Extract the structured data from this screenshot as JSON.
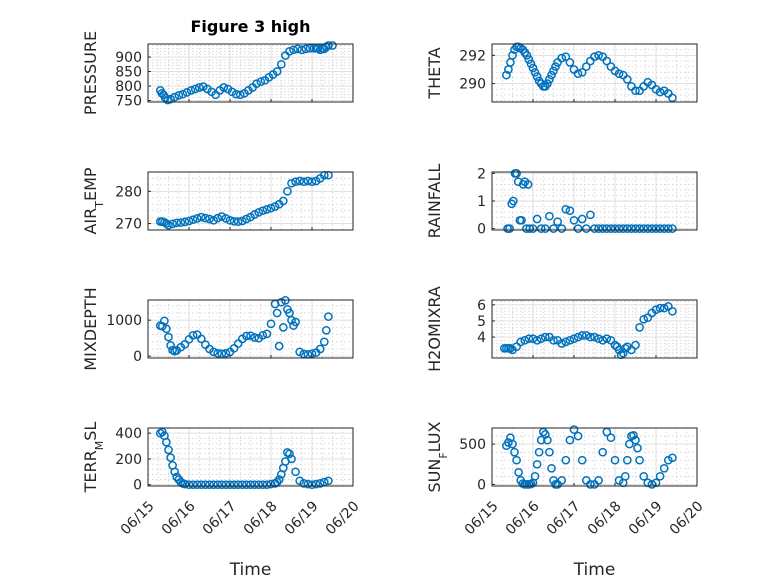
{
  "figure": {
    "title": "Figure 3 high"
  },
  "chart_data": [
    {
      "type": "scatter",
      "title": "Figure 3 high",
      "ylabel": "PRESSURE",
      "ylim": [
        745,
        945
      ],
      "yticks": [
        750,
        800,
        850,
        900
      ],
      "x": [
        0.3,
        0.34,
        0.38,
        0.42,
        0.48,
        0.55,
        0.65,
        0.75,
        0.85,
        0.95,
        1.05,
        1.15,
        1.25,
        1.35,
        1.45,
        1.55,
        1.65,
        1.75,
        1.85,
        1.95,
        2.05,
        2.15,
        2.25,
        2.35,
        2.45,
        2.55,
        2.65,
        2.75,
        2.85,
        2.95,
        3.05,
        3.15,
        3.25,
        3.35,
        3.45,
        3.55,
        3.65,
        3.75,
        3.85,
        3.95,
        4.05,
        4.1,
        4.15,
        4.2,
        4.25,
        4.3,
        4.35,
        4.4,
        4.5
      ],
      "y": [
        785,
        775,
        770,
        760,
        752,
        755,
        762,
        768,
        772,
        778,
        785,
        790,
        795,
        798,
        790,
        780,
        770,
        785,
        795,
        790,
        780,
        772,
        770,
        775,
        785,
        795,
        808,
        815,
        820,
        830,
        840,
        850,
        875,
        905,
        920,
        925,
        928,
        925,
        928,
        930,
        930,
        930,
        930,
        925,
        930,
        928,
        935,
        940,
        940
      ],
      "color": "#0072BD"
    },
    {
      "type": "scatter",
      "ylabel": "THETA",
      "ylim": [
        288.7,
        292.8
      ],
      "yticks": [
        290,
        292
      ],
      "x": [
        0.35,
        0.4,
        0.45,
        0.5,
        0.55,
        0.6,
        0.65,
        0.7,
        0.75,
        0.8,
        0.85,
        0.9,
        0.95,
        1.0,
        1.05,
        1.1,
        1.15,
        1.2,
        1.25,
        1.3,
        1.35,
        1.4,
        1.45,
        1.5,
        1.55,
        1.6,
        1.7,
        1.8,
        1.9,
        2.0,
        2.1,
        2.2,
        2.3,
        2.4,
        2.5,
        2.6,
        2.7,
        2.8,
        2.9,
        3.0,
        3.1,
        3.2,
        3.3,
        3.4,
        3.5,
        3.6,
        3.7,
        3.8,
        3.9,
        4.0,
        4.1,
        4.2,
        4.3,
        4.4
      ],
      "y": [
        290.6,
        291.0,
        291.5,
        292.0,
        292.4,
        292.6,
        292.6,
        292.5,
        292.4,
        292.2,
        292.0,
        291.7,
        291.4,
        291.1,
        290.8,
        290.5,
        290.2,
        290.0,
        289.8,
        289.8,
        290.0,
        290.3,
        290.6,
        290.9,
        291.2,
        291.5,
        291.8,
        291.9,
        291.5,
        291.0,
        290.7,
        290.8,
        291.2,
        291.6,
        291.9,
        292.0,
        291.9,
        291.6,
        291.2,
        290.9,
        290.7,
        290.6,
        290.3,
        289.8,
        289.5,
        289.5,
        289.8,
        290.1,
        289.9,
        289.6,
        289.4,
        289.5,
        289.3,
        289.0
      ],
      "color": "#0072BD"
    },
    {
      "type": "scatter",
      "ylabel": "AIR_TEMP",
      "ylim": [
        268,
        286
      ],
      "yticks": [
        270,
        280
      ],
      "x": [
        0.3,
        0.35,
        0.4,
        0.45,
        0.5,
        0.6,
        0.7,
        0.8,
        0.9,
        1.0,
        1.1,
        1.2,
        1.3,
        1.4,
        1.5,
        1.6,
        1.7,
        1.8,
        1.9,
        2.0,
        2.1,
        2.2,
        2.3,
        2.4,
        2.5,
        2.6,
        2.7,
        2.8,
        2.9,
        3.0,
        3.1,
        3.2,
        3.3,
        3.4,
        3.5,
        3.6,
        3.7,
        3.8,
        3.9,
        4.0,
        4.1,
        4.2,
        4.3,
        4.4
      ],
      "y": [
        270.6,
        270.6,
        270.4,
        270.0,
        269.5,
        269.9,
        270.2,
        270.3,
        270.5,
        270.8,
        271.2,
        271.6,
        272.0,
        271.7,
        271.4,
        271.0,
        271.7,
        272.2,
        271.6,
        271.0,
        270.7,
        270.6,
        270.8,
        271.4,
        272.0,
        272.8,
        273.5,
        274.0,
        274.4,
        274.8,
        275.3,
        276.0,
        277.0,
        280.0,
        282.5,
        283.0,
        283.2,
        283.0,
        283.2,
        283.0,
        283.2,
        284.0,
        285.0,
        285.0
      ],
      "color": "#0072BD"
    },
    {
      "type": "scatter",
      "ylabel": "RAINFALL",
      "ylim": [
        -0.05,
        2.05
      ],
      "yticks": [
        0,
        1,
        2
      ],
      "x": [
        0.38,
        0.43,
        0.48,
        0.52,
        0.56,
        0.6,
        0.64,
        0.68,
        0.72,
        0.76,
        0.8,
        0.84,
        0.88,
        0.92,
        1.0,
        1.1,
        1.2,
        1.3,
        1.4,
        1.5,
        1.6,
        1.7,
        1.8,
        1.9,
        2.0,
        2.1,
        2.2,
        2.3,
        2.4,
        2.5,
        2.6,
        2.7,
        2.8,
        2.9,
        3.0,
        3.1,
        3.2,
        3.3,
        3.4,
        3.5,
        3.6,
        3.7,
        3.8,
        3.9,
        4.0,
        4.1,
        4.2,
        4.3,
        4.4
      ],
      "y": [
        0,
        0,
        0.9,
        1.0,
        2.0,
        2.0,
        1.7,
        0.3,
        0.3,
        1.6,
        1.7,
        0,
        1.6,
        0,
        0,
        0.35,
        0,
        0,
        0.45,
        0,
        0.25,
        0,
        0.7,
        0.65,
        0.3,
        0,
        0.35,
        0,
        0.5,
        0,
        0,
        0,
        0,
        0,
        0,
        0,
        0,
        0,
        0,
        0,
        0,
        0,
        0,
        0,
        0,
        0,
        0,
        0,
        0
      ],
      "color": "#0072BD"
    },
    {
      "type": "scatter",
      "ylabel": "MIXDEPTH",
      "ylim": [
        -50,
        1560
      ],
      "yticks": [
        0,
        1000
      ],
      "x": [
        0.3,
        0.35,
        0.4,
        0.45,
        0.5,
        0.55,
        0.6,
        0.65,
        0.7,
        0.8,
        0.9,
        1.0,
        1.1,
        1.2,
        1.3,
        1.4,
        1.5,
        1.6,
        1.7,
        1.8,
        1.9,
        2.0,
        2.1,
        2.2,
        2.3,
        2.4,
        2.5,
        2.6,
        2.7,
        2.8,
        2.9,
        3.0,
        3.1,
        3.15,
        3.2,
        3.25,
        3.3,
        3.35,
        3.4,
        3.45,
        3.5,
        3.55,
        3.6,
        3.7,
        3.8,
        3.9,
        4.0,
        4.1,
        4.2,
        4.3,
        4.35,
        4.4
      ],
      "y": [
        850,
        830,
        980,
        760,
        530,
        300,
        170,
        140,
        160,
        250,
        330,
        470,
        580,
        600,
        480,
        320,
        200,
        120,
        80,
        70,
        80,
        120,
        220,
        350,
        480,
        560,
        570,
        520,
        500,
        580,
        620,
        900,
        1450,
        1200,
        280,
        1500,
        800,
        1550,
        1300,
        1200,
        1000,
        850,
        950,
        120,
        60,
        50,
        70,
        100,
        200,
        400,
        720,
        1100
      ],
      "color": "#0072BD"
    },
    {
      "type": "scatter",
      "ylabel": "H2OMIXRA",
      "ylim": [
        2.7,
        6.3
      ],
      "yticks": [
        4,
        5,
        6
      ],
      "x": [
        0.3,
        0.35,
        0.4,
        0.45,
        0.5,
        0.6,
        0.7,
        0.8,
        0.9,
        1.0,
        1.1,
        1.2,
        1.3,
        1.4,
        1.5,
        1.6,
        1.7,
        1.8,
        1.9,
        2.0,
        2.1,
        2.2,
        2.3,
        2.4,
        2.5,
        2.6,
        2.7,
        2.8,
        2.9,
        3.0,
        3.05,
        3.1,
        3.15,
        3.2,
        3.25,
        3.3,
        3.4,
        3.5,
        3.6,
        3.7,
        3.8,
        3.9,
        4.0,
        4.1,
        4.2,
        4.3,
        4.4
      ],
      "y": [
        3.3,
        3.3,
        3.3,
        3.3,
        3.2,
        3.4,
        3.7,
        3.8,
        3.9,
        3.9,
        3.8,
        3.9,
        4.0,
        4.0,
        3.8,
        3.8,
        3.6,
        3.7,
        3.8,
        3.9,
        4.0,
        4.1,
        4.1,
        4.0,
        4.0,
        3.9,
        3.8,
        3.9,
        3.8,
        3.5,
        3.4,
        3.2,
        2.9,
        3.0,
        3.3,
        3.4,
        3.2,
        3.5,
        4.6,
        5.1,
        5.2,
        5.5,
        5.7,
        5.8,
        5.8,
        5.9,
        5.6
      ],
      "color": "#0072BD"
    },
    {
      "type": "scatter",
      "ylabel": "TERR_MSL",
      "ylim": [
        -10,
        440
      ],
      "yticks": [
        0,
        200,
        400
      ],
      "x": [
        0.3,
        0.35,
        0.4,
        0.45,
        0.5,
        0.55,
        0.6,
        0.65,
        0.7,
        0.75,
        0.8,
        0.85,
        0.9,
        1.0,
        1.1,
        1.2,
        1.3,
        1.4,
        1.5,
        1.6,
        1.7,
        1.8,
        1.9,
        2.0,
        2.1,
        2.2,
        2.3,
        2.4,
        2.5,
        2.6,
        2.7,
        2.8,
        2.9,
        3.0,
        3.1,
        3.15,
        3.2,
        3.25,
        3.3,
        3.35,
        3.4,
        3.45,
        3.5,
        3.6,
        3.7,
        3.8,
        3.9,
        4.0,
        4.1,
        4.2,
        4.3,
        4.4
      ],
      "y": [
        400,
        410,
        380,
        330,
        270,
        210,
        150,
        100,
        60,
        40,
        20,
        10,
        5,
        0,
        0,
        0,
        0,
        0,
        0,
        0,
        0,
        0,
        0,
        0,
        0,
        0,
        0,
        0,
        0,
        0,
        0,
        0,
        0,
        5,
        10,
        20,
        40,
        80,
        130,
        180,
        250,
        240,
        200,
        100,
        30,
        10,
        5,
        0,
        5,
        10,
        20,
        30
      ],
      "color": "#0072BD"
    },
    {
      "type": "scatter",
      "ylabel": "SUN_FLUX",
      "ylim": [
        -20,
        700
      ],
      "yticks": [
        0,
        500
      ],
      "x": [
        0.35,
        0.4,
        0.45,
        0.5,
        0.55,
        0.6,
        0.65,
        0.7,
        0.75,
        0.8,
        0.85,
        0.9,
        0.95,
        1.0,
        1.05,
        1.1,
        1.15,
        1.2,
        1.25,
        1.3,
        1.35,
        1.4,
        1.45,
        1.5,
        1.55,
        1.6,
        1.7,
        1.8,
        1.9,
        2.0,
        2.1,
        2.2,
        2.3,
        2.4,
        2.5,
        2.6,
        2.7,
        2.8,
        2.9,
        3.0,
        3.1,
        3.2,
        3.25,
        3.3,
        3.35,
        3.4,
        3.45,
        3.5,
        3.55,
        3.6,
        3.7,
        3.8,
        3.9,
        4.0,
        4.1,
        4.2,
        4.3,
        4.4
      ],
      "y": [
        480,
        520,
        580,
        500,
        400,
        300,
        150,
        50,
        10,
        0,
        0,
        0,
        5,
        20,
        100,
        250,
        400,
        550,
        650,
        620,
        550,
        400,
        200,
        50,
        0,
        0,
        50,
        300,
        550,
        680,
        600,
        300,
        50,
        0,
        0,
        50,
        400,
        650,
        580,
        300,
        50,
        20,
        100,
        300,
        500,
        600,
        610,
        550,
        450,
        300,
        100,
        20,
        0,
        20,
        100,
        200,
        300,
        330
      ],
      "color": "#0072BD"
    }
  ],
  "xaxis": {
    "label": "Time",
    "ticks": [
      "06/15",
      "06/16",
      "06/17",
      "06/18",
      "06/19",
      "06/20"
    ],
    "range": [
      0,
      5
    ]
  }
}
